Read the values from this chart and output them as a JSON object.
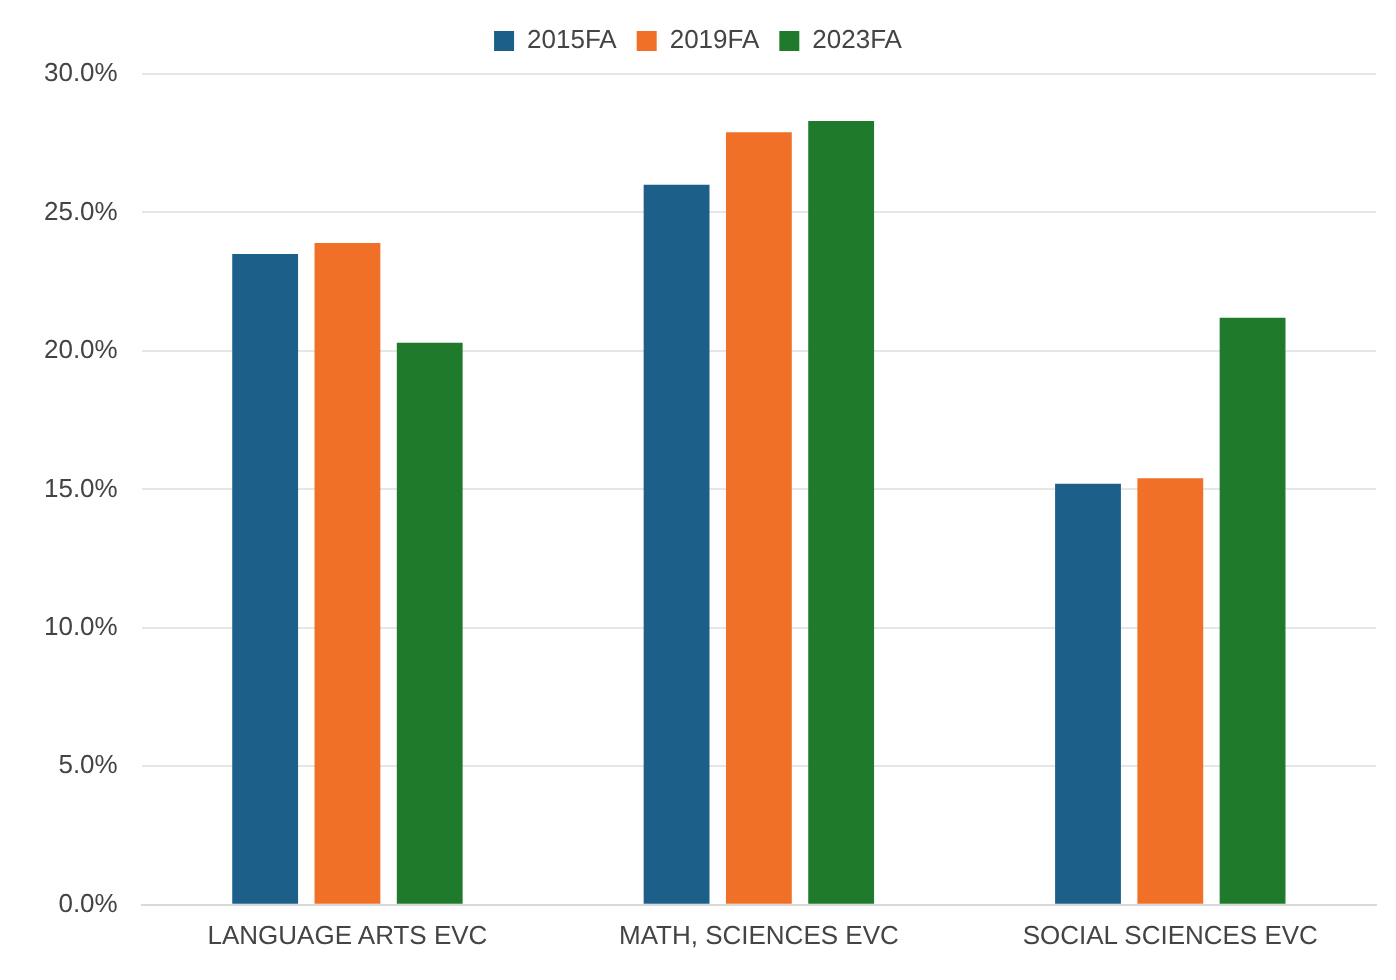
{
  "chart_data": {
    "type": "bar",
    "categories": [
      "LANGUAGE ARTS EVC",
      "MATH, SCIENCES EVC",
      "SOCIAL SCIENCES EVC"
    ],
    "series": [
      {
        "name": "2015FA",
        "color": "#1c6089",
        "values": [
          23.5,
          26.0,
          15.2
        ]
      },
      {
        "name": "2019FA",
        "color": "#ef7026",
        "values": [
          23.9,
          27.9,
          15.4
        ]
      },
      {
        "name": "2023FA",
        "color": "#1f7a2c",
        "values": [
          20.3,
          28.3,
          21.2
        ]
      }
    ],
    "ylim": [
      0,
      30
    ],
    "yticks": [
      {
        "value": 0,
        "label": "0.0%"
      },
      {
        "value": 5,
        "label": "5.0%"
      },
      {
        "value": 10,
        "label": "10.0%"
      },
      {
        "value": 15,
        "label": "15.0%"
      },
      {
        "value": 20,
        "label": "20.0%"
      },
      {
        "value": 25,
        "label": "25.0%"
      },
      {
        "value": 30,
        "label": "30.0%"
      }
    ],
    "grid": "y",
    "legend": "top"
  }
}
